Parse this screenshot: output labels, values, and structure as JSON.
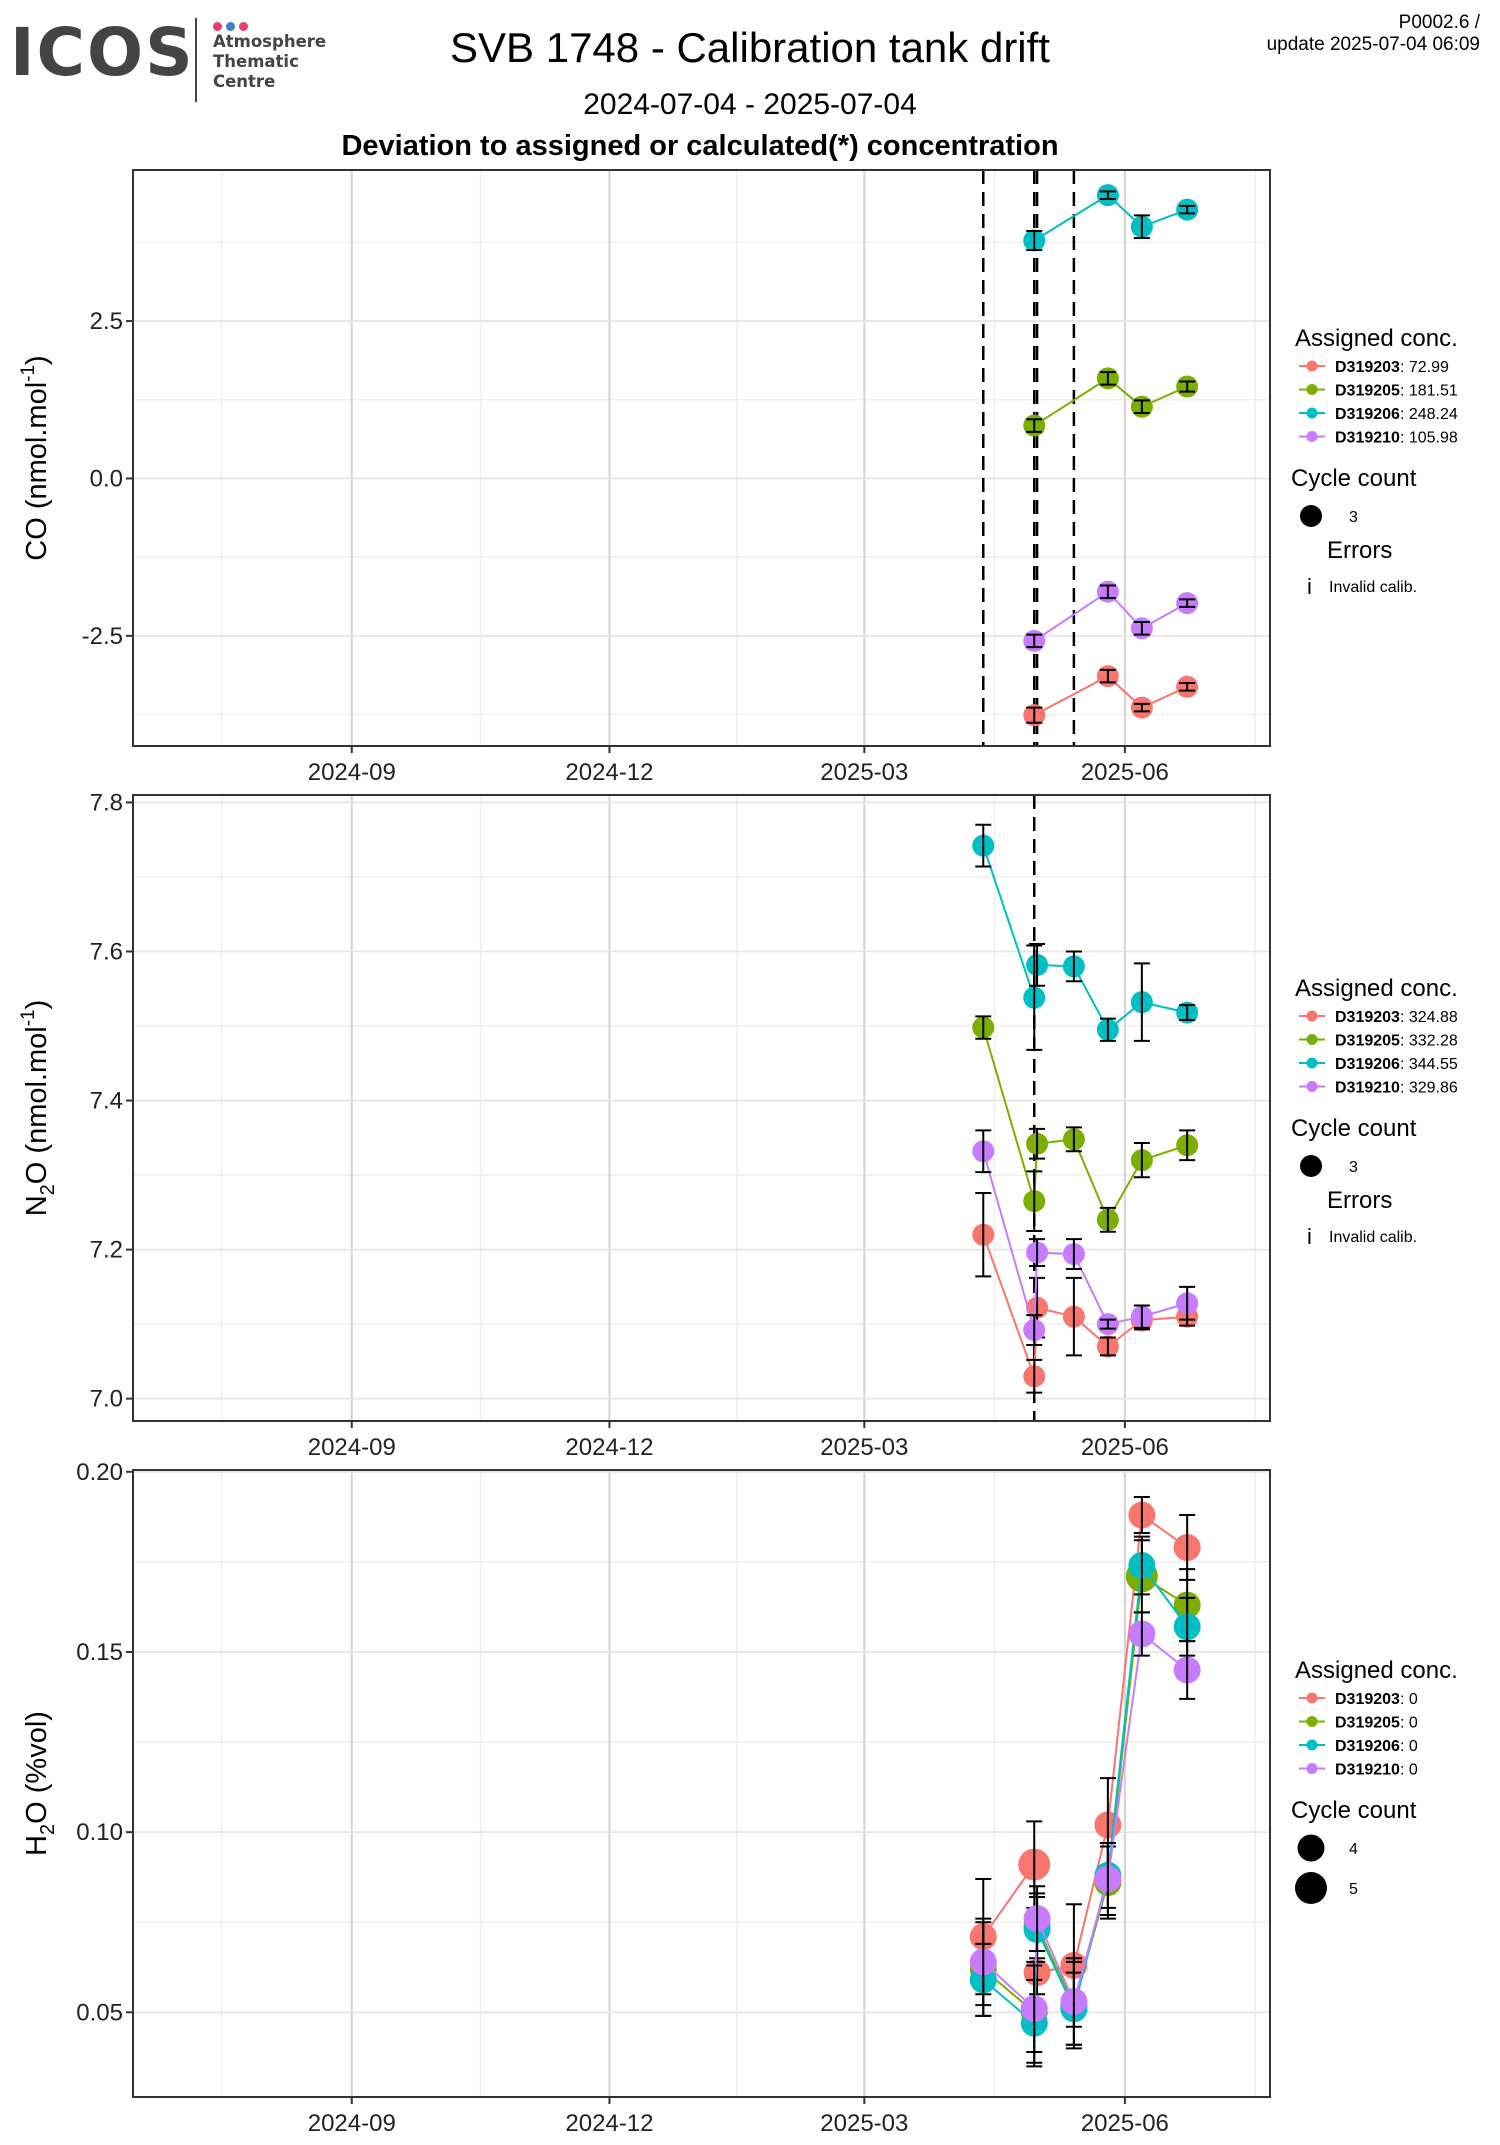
{
  "logo": {
    "text": "ICOS",
    "lines": [
      "Atmosphere",
      "Thematic",
      "Centre"
    ],
    "dot_colors": [
      "#e63c6e",
      "#3b82c4",
      "#e63c6e"
    ]
  },
  "header": {
    "title": "SVB 1748 - Calibration tank drift",
    "subtitle": "2024-07-04 - 2025-07-04",
    "heading": "Deviation to assigned or calculated(*) concentration",
    "version_line1": "P0002.6 /",
    "version_line2": "update  2025-07-04 06:09"
  },
  "colors": {
    "D319203": "#F8766D",
    "D319205": "#7CAE00",
    "D319206": "#00BFC4",
    "D319210": "#C77CFF"
  },
  "chart_data": [
    {
      "type": "scatter",
      "ylabel_main": "CO (nmol.mol",
      "ylabel_sup": "-1",
      "ylabel_end": ")",
      "x_ticks": [
        "2024-09-01",
        "2024-12-01",
        "2025-03-01",
        "2025-06-01"
      ],
      "x_tick_labels": [
        "2024-09",
        "2024-12",
        "2025-03",
        "2025-06"
      ],
      "y_ticks": [
        -2.5,
        0.0,
        2.5
      ],
      "y_tick_labels": [
        "-2.5",
        "0.0",
        "2.5"
      ],
      "ylim": [
        -4.25,
        4.9
      ],
      "grid": true,
      "vlines": [
        "2025-04-12",
        "2025-04-30",
        "2025-05-01",
        "2025-05-14"
      ],
      "legend_title": "Assigned conc.",
      "series": [
        {
          "name": "D319203",
          "assigned": "72.99",
          "points": [
            [
              "2025-04-30",
              -3.76,
              0.12
            ],
            [
              "2025-05-26",
              -3.14,
              0.1
            ],
            [
              "2025-06-07",
              -3.64,
              0.06
            ],
            [
              "2025-06-23",
              -3.31,
              0.06
            ]
          ]
        },
        {
          "name": "D319205",
          "assigned": "181.51",
          "points": [
            [
              "2025-04-30",
              0.84,
              0.1
            ],
            [
              "2025-05-26",
              1.59,
              0.1
            ],
            [
              "2025-06-07",
              1.14,
              0.1
            ],
            [
              "2025-06-23",
              1.46,
              0.08
            ]
          ]
        },
        {
          "name": "D319206",
          "assigned": "248.24",
          "points": [
            [
              "2025-04-30",
              3.78,
              0.15
            ],
            [
              "2025-05-26",
              4.5,
              0.06
            ],
            [
              "2025-06-07",
              4.0,
              0.18
            ],
            [
              "2025-06-23",
              4.27,
              0.06
            ]
          ]
        },
        {
          "name": "D319210",
          "assigned": "105.98",
          "points": [
            [
              "2025-04-30",
              -2.58,
              0.1
            ],
            [
              "2025-05-26",
              -1.8,
              0.1
            ],
            [
              "2025-06-07",
              -2.38,
              0.1
            ],
            [
              "2025-06-23",
              -1.98,
              0.06
            ]
          ]
        }
      ],
      "cycle_count_title": "Cycle count",
      "cycle_counts": [
        {
          "label": "3",
          "size": 3
        }
      ],
      "errors_title": "Errors",
      "errors_symbol": "i",
      "errors_label": "Invalid calib."
    },
    {
      "type": "scatter",
      "ylabel_main": "N",
      "ylabel_sub": "2",
      "ylabel_mid": "O (nmol.mol",
      "ylabel_sup": "-1",
      "ylabel_end": ")",
      "x_ticks": [
        "2024-09-01",
        "2024-12-01",
        "2025-03-01",
        "2025-06-01"
      ],
      "x_tick_labels": [
        "2024-09",
        "2024-12",
        "2025-03",
        "2025-06"
      ],
      "y_ticks": [
        7.0,
        7.2,
        7.4,
        7.6,
        7.8
      ],
      "y_tick_labels": [
        "7.0",
        "7.2",
        "7.4",
        "7.6",
        "7.8"
      ],
      "ylim": [
        6.97,
        7.81
      ],
      "grid": true,
      "vlines": [
        "2025-04-30"
      ],
      "legend_title": "Assigned conc.",
      "series": [
        {
          "name": "D319203",
          "assigned": "324.88",
          "points": [
            [
              "2025-04-12",
              7.22,
              0.056
            ],
            [
              "2025-04-30",
              7.03,
              0.022
            ],
            [
              "2025-05-01",
              7.122,
              0.04
            ],
            [
              "2025-05-14",
              7.11,
              0.052
            ],
            [
              "2025-05-26",
              7.07,
              0.012
            ],
            [
              "2025-06-07",
              7.105,
              0.012
            ],
            [
              "2025-06-23",
              7.11,
              0.012
            ]
          ]
        },
        {
          "name": "D319205",
          "assigned": "332.28",
          "points": [
            [
              "2025-04-12",
              7.498,
              0.015
            ],
            [
              "2025-04-30",
              7.265,
              0.04
            ],
            [
              "2025-05-01",
              7.342,
              0.02
            ],
            [
              "2025-05-14",
              7.348,
              0.016
            ],
            [
              "2025-05-26",
              7.24,
              0.016
            ],
            [
              "2025-06-07",
              7.32,
              0.023
            ],
            [
              "2025-06-23",
              7.34,
              0.02
            ]
          ]
        },
        {
          "name": "D319206",
          "assigned": "344.55",
          "points": [
            [
              "2025-04-12",
              7.742,
              0.028
            ],
            [
              "2025-04-30",
              7.538,
              0.07
            ],
            [
              "2025-05-01",
              7.582,
              0.028
            ],
            [
              "2025-05-14",
              7.58,
              0.02
            ],
            [
              "2025-05-26",
              7.495,
              0.015
            ],
            [
              "2025-06-07",
              7.532,
              0.052
            ],
            [
              "2025-06-23",
              7.518,
              0.01
            ]
          ]
        },
        {
          "name": "D319210",
          "assigned": "329.86",
          "points": [
            [
              "2025-04-12",
              7.332,
              0.028
            ],
            [
              "2025-04-30",
              7.092,
              0.02
            ],
            [
              "2025-05-01",
              7.196,
              0.018
            ],
            [
              "2025-05-14",
              7.194,
              0.02
            ],
            [
              "2025-05-26",
              7.1,
              0.006
            ],
            [
              "2025-06-07",
              7.11,
              0.015
            ],
            [
              "2025-06-23",
              7.128,
              0.022
            ]
          ]
        }
      ],
      "cycle_count_title": "Cycle count",
      "cycle_counts": [
        {
          "label": "3",
          "size": 3
        }
      ],
      "errors_title": "Errors",
      "errors_symbol": "i",
      "errors_label": "Invalid calib."
    },
    {
      "type": "scatter",
      "ylabel_main": "H",
      "ylabel_sub": "2",
      "ylabel_mid": "O (%vol)",
      "ylabel_sup": "",
      "ylabel_end": "",
      "x_ticks": [
        "2024-09-01",
        "2024-12-01",
        "2025-03-01",
        "2025-06-01"
      ],
      "x_tick_labels": [
        "2024-09",
        "2024-12",
        "2025-03",
        "2025-06"
      ],
      "y_ticks": [
        0.05,
        0.1,
        0.15,
        0.2
      ],
      "y_tick_labels": [
        "0.05",
        "0.10",
        "0.15",
        "0.20"
      ],
      "ylim": [
        0.0265,
        0.2005
      ],
      "grid": true,
      "vlines": [],
      "legend_title": "Assigned conc.",
      "series": [
        {
          "name": "D319203",
          "assigned": "0",
          "points": [
            [
              "2025-04-12",
              0.071,
              0.016,
              4
            ],
            [
              "2025-04-30",
              0.091,
              0.012,
              5
            ],
            [
              "2025-05-01",
              0.061,
              0.006,
              4
            ],
            [
              "2025-05-14",
              0.063,
              0.017,
              4
            ],
            [
              "2025-05-26",
              0.102,
              0.013,
              4
            ],
            [
              "2025-06-07",
              0.188,
              0.005,
              4
            ],
            [
              "2025-06-23",
              0.179,
              0.009,
              4
            ]
          ]
        },
        {
          "name": "D319205",
          "assigned": "0",
          "points": [
            [
              "2025-04-12",
              0.062,
              0.013,
              4
            ],
            [
              "2025-04-30",
              0.05,
              0.014,
              4
            ],
            [
              "2025-05-01",
              0.074,
              0.009,
              4
            ],
            [
              "2025-05-14",
              0.052,
              0.012,
              4
            ],
            [
              "2025-05-26",
              0.086,
              0.01,
              4
            ],
            [
              "2025-06-07",
              0.171,
              0.01,
              5
            ],
            [
              "2025-06-23",
              0.163,
              0.01,
              4
            ]
          ]
        },
        {
          "name": "D319206",
          "assigned": "0",
          "points": [
            [
              "2025-04-12",
              0.059,
              0.01,
              4
            ],
            [
              "2025-04-30",
              0.047,
              0.012,
              4
            ],
            [
              "2025-05-01",
              0.073,
              0.009,
              4
            ],
            [
              "2025-05-14",
              0.051,
              0.01,
              4
            ],
            [
              "2025-05-26",
              0.088,
              0.009,
              4
            ],
            [
              "2025-06-07",
              0.174,
              0.008,
              4
            ],
            [
              "2025-06-23",
              0.157,
              0.008,
              4
            ]
          ]
        },
        {
          "name": "D319210",
          "assigned": "0",
          "points": [
            [
              "2025-04-12",
              0.064,
              0.012,
              4
            ],
            [
              "2025-04-30",
              0.051,
              0.012,
              4
            ],
            [
              "2025-05-01",
              0.076,
              0.009,
              4
            ],
            [
              "2025-05-14",
              0.053,
              0.012,
              4
            ],
            [
              "2025-05-26",
              0.087,
              0.01,
              4
            ],
            [
              "2025-06-07",
              0.155,
              0.006,
              4
            ],
            [
              "2025-06-23",
              0.145,
              0.008,
              4
            ]
          ]
        }
      ],
      "cycle_count_title": "Cycle count",
      "cycle_counts": [
        {
          "label": "4",
          "size": 4
        },
        {
          "label": "5",
          "size": 5
        }
      ],
      "errors_title": "",
      "errors_symbol": "",
      "errors_label": ""
    }
  ]
}
